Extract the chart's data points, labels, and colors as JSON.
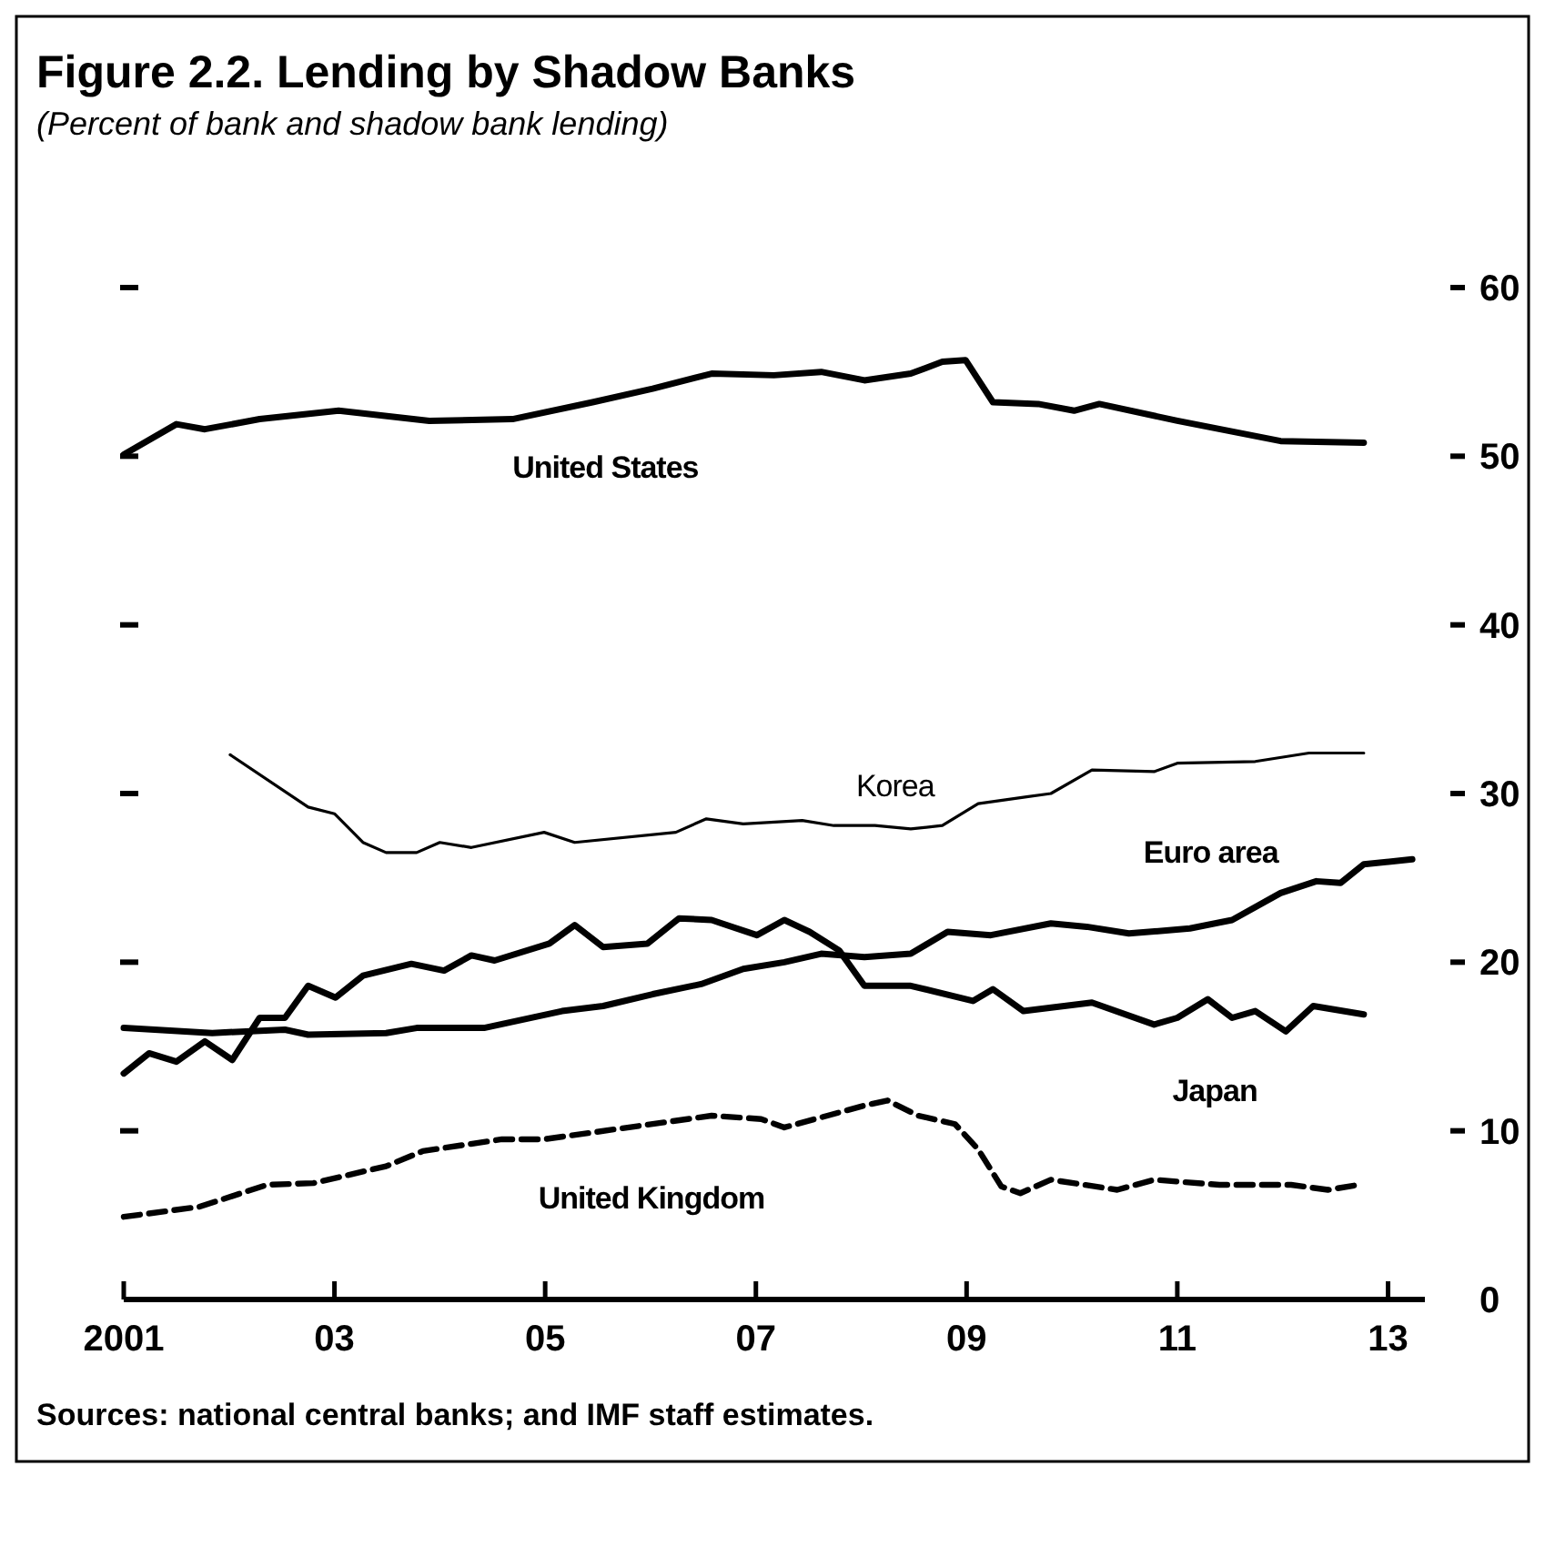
{
  "chart_data": {
    "type": "line",
    "title": "Figure 2.2. Lending by Shadow Banks",
    "subtitle": "(Percent of bank and shadow bank lending)",
    "xlim": [
      2001,
      2013.35
    ],
    "xticks": [
      {
        "value": 2001,
        "label": "2001"
      },
      {
        "value": 2003,
        "label": "03"
      },
      {
        "value": 2005,
        "label": "05"
      },
      {
        "value": 2007,
        "label": "07"
      },
      {
        "value": 2009,
        "label": "09"
      },
      {
        "value": 2011,
        "label": "11"
      },
      {
        "value": 2013,
        "label": "13"
      }
    ],
    "ylim": [
      0,
      60
    ],
    "yticks": [
      0,
      10,
      20,
      30,
      40,
      50,
      60
    ],
    "grid": false,
    "series": [
      {
        "name": "United States",
        "color": "#000000",
        "line_style": "solid",
        "x": [
          2001,
          2001.5,
          2001.77,
          2002.29,
          2003.04,
          2003.9,
          2004.69,
          2005.45,
          2006.02,
          2006.58,
          2007.17,
          2007.62,
          2008.03,
          2008.47,
          2008.77,
          2008.99,
          2009.25,
          2009.68,
          2010.02,
          2010.26,
          2011.0,
          2011.98,
          2012.77
        ],
        "values": [
          50.1,
          51.9,
          51.6,
          52.2,
          52.7,
          52.1,
          52.2,
          53.2,
          54.0,
          54.9,
          54.8,
          55.0,
          54.5,
          54.9,
          55.6,
          55.7,
          53.2,
          53.1,
          52.7,
          53.1,
          52.1,
          50.9,
          50.8
        ]
      },
      {
        "name": "Korea",
        "color": "#000000",
        "line_style": "solid",
        "x": [
          2002.01,
          2002.75,
          2003.0,
          2003.27,
          2003.49,
          2003.78,
          2004.0,
          2004.3,
          2004.99,
          2005.28,
          2006.24,
          2006.53,
          2006.88,
          2007.44,
          2007.74,
          2008.13,
          2008.47,
          2008.77,
          2009.11,
          2009.57,
          2009.8,
          2010.19,
          2010.78,
          2011.0,
          2011.74,
          2012.25,
          2012.77
        ],
        "values": [
          32.3,
          29.2,
          28.8,
          27.1,
          26.5,
          26.5,
          27.1,
          26.8,
          27.7,
          27.1,
          27.7,
          28.5,
          28.2,
          28.4,
          28.1,
          28.1,
          27.9,
          28.1,
          29.4,
          29.8,
          30.0,
          31.4,
          31.3,
          31.8,
          31.9,
          32.4,
          32.4
        ]
      },
      {
        "name": "Euro area",
        "color": "#000000",
        "line_style": "solid",
        "x": [
          2001,
          2001.84,
          2002.53,
          2002.75,
          2003.49,
          2003.78,
          2004.42,
          2005.16,
          2005.55,
          2006.02,
          2006.48,
          2006.88,
          2007.27,
          2007.62,
          2008.03,
          2008.47,
          2008.82,
          2009.23,
          2009.8,
          2010.14,
          2010.54,
          2011.12,
          2011.52,
          2011.98,
          2012.32,
          2012.55,
          2012.77,
          2013.23
        ],
        "values": [
          16.1,
          15.8,
          16.0,
          15.7,
          15.8,
          16.1,
          16.1,
          17.1,
          17.4,
          18.1,
          18.7,
          19.6,
          20.0,
          20.5,
          20.3,
          20.5,
          21.8,
          21.6,
          22.3,
          22.1,
          21.7,
          22.0,
          22.5,
          24.1,
          24.8,
          24.7,
          25.8,
          26.1
        ]
      },
      {
        "name": "Japan",
        "color": "#000000",
        "line_style": "solid",
        "x": [
          2001,
          2001.24,
          2001.5,
          2001.77,
          2002.03,
          2002.29,
          2002.53,
          2002.75,
          2003.01,
          2003.27,
          2003.73,
          2004.04,
          2004.3,
          2004.52,
          2005.04,
          2005.28,
          2005.55,
          2005.97,
          2006.27,
          2006.58,
          2007.01,
          2007.27,
          2007.51,
          2007.79,
          2008.03,
          2008.47,
          2009.06,
          2009.25,
          2009.54,
          2010.19,
          2010.78,
          2011.0,
          2011.29,
          2011.52,
          2011.74,
          2012.03,
          2012.29,
          2012.77
        ],
        "values": [
          13.4,
          14.6,
          14.1,
          15.3,
          14.2,
          16.7,
          16.7,
          18.6,
          17.9,
          19.2,
          19.9,
          19.5,
          20.4,
          20.1,
          21.1,
          22.2,
          20.9,
          21.1,
          22.6,
          22.5,
          21.6,
          22.5,
          21.8,
          20.7,
          18.6,
          18.6,
          17.7,
          18.4,
          17.1,
          17.6,
          16.3,
          16.7,
          17.8,
          16.7,
          17.1,
          15.9,
          17.4,
          16.9
        ]
      },
      {
        "name": "United Kingdom",
        "color": "#000000",
        "line_style": "dashed",
        "x": [
          2001,
          2001.72,
          2002.36,
          2002.8,
          2003.49,
          2003.84,
          2004.59,
          2004.99,
          2005.9,
          2006.58,
          2007.05,
          2007.27,
          2008.03,
          2008.25,
          2008.54,
          2008.89,
          2009.11,
          2009.33,
          2009.51,
          2009.8,
          2010.43,
          2010.78,
          2011.4,
          2012.08,
          2012.43,
          2012.72
        ],
        "values": [
          4.9,
          5.5,
          6.8,
          6.9,
          7.9,
          8.8,
          9.5,
          9.5,
          10.3,
          10.9,
          10.7,
          10.2,
          11.5,
          11.8,
          10.9,
          10.4,
          8.9,
          6.7,
          6.3,
          7.1,
          6.5,
          7.1,
          6.8,
          6.8,
          6.5,
          6.8
        ]
      }
    ],
    "annotations": [
      "Sources: national central banks; and IMF staff estimates."
    ]
  }
}
